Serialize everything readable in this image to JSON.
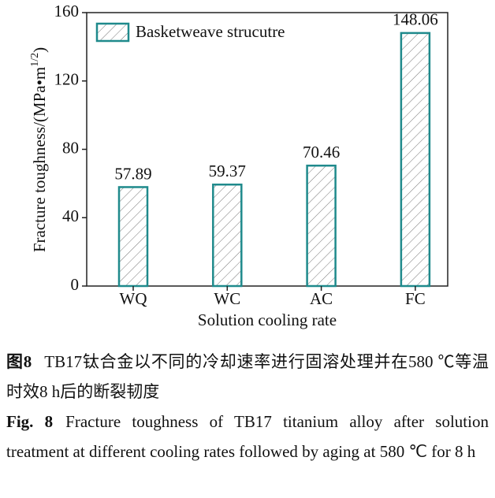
{
  "chart_data": {
    "type": "bar",
    "ylabel": "Fracture toughness/(MPa•m",
    "ylabel_sup": "1/2",
    "ylabel_end": ")",
    "xlabel": "Solution cooling rate",
    "categories": [
      "WQ",
      "WC",
      "AC",
      "FC"
    ],
    "series": [
      {
        "name": "Basketweave strucutre",
        "color": "#1f8a8c",
        "values": [
          57.89,
          59.37,
          70.46,
          148.06
        ]
      }
    ],
    "ylim": [
      0,
      160
    ],
    "yticks": [
      0,
      40,
      80,
      120,
      160
    ],
    "legend": "upper left"
  },
  "caption_cn": {
    "label": "图8",
    "text": "TB17钛合金以不同的冷却速率进行固溶处理并在580 ℃等温时效8 h后的断裂韧度"
  },
  "caption_en": {
    "label": "Fig. 8",
    "text": "Fracture toughness of TB17 titanium alloy after solution treatment at different cooling rates followed by aging at 580 ℃ for 8 h"
  }
}
